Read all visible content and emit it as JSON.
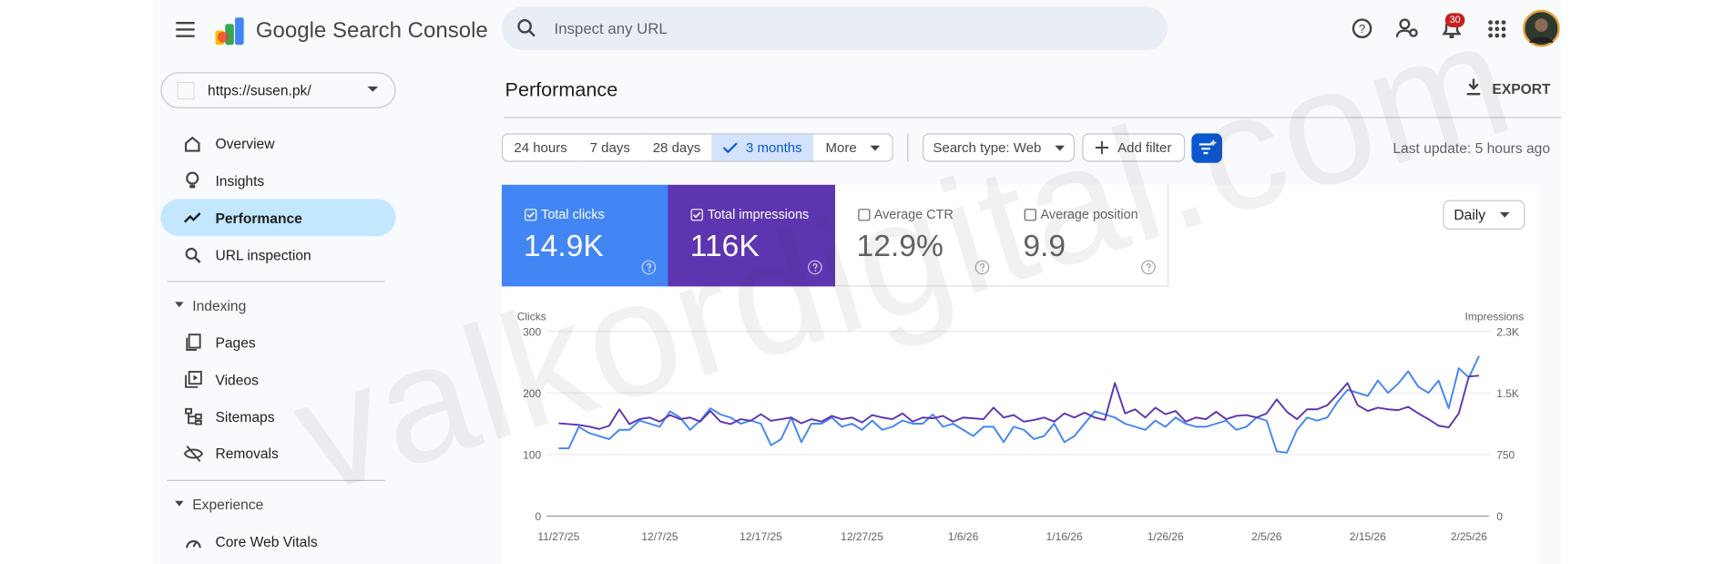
{
  "header": {
    "product": "Google Search Console",
    "search_placeholder": "Inspect any URL",
    "notifications": "30"
  },
  "sidebar": {
    "property": "https://susen.pk/",
    "nav": [
      "Overview",
      "Insights",
      "Performance",
      "URL inspection"
    ],
    "groups": [
      {
        "title": "Indexing",
        "items": [
          "Pages",
          "Videos",
          "Sitemaps",
          "Removals"
        ]
      },
      {
        "title": "Experience",
        "items": [
          "Core Web Vitals"
        ]
      }
    ]
  },
  "performance": {
    "title": "Performance",
    "export": "EXPORT",
    "ranges": [
      "24 hours",
      "7 days",
      "28 days",
      "3 months",
      "More"
    ],
    "search_type": "Search type: Web",
    "add_filter": "Add filter",
    "last_update": "Last update: 5 hours ago",
    "metrics": [
      {
        "label": "Total clicks",
        "value": "14.9K"
      },
      {
        "label": "Total impressions",
        "value": "116K"
      },
      {
        "label": "Average CTR",
        "value": "12.9%"
      },
      {
        "label": "Average position",
        "value": "9.9"
      }
    ],
    "granularity": "Daily"
  },
  "watermark": "valkordigital.com",
  "chart_data": {
    "type": "line",
    "x": [
      "11/27/25",
      null,
      null,
      null,
      null,
      null,
      null,
      null,
      null,
      null,
      "12/7/25",
      null,
      null,
      null,
      null,
      null,
      null,
      null,
      null,
      null,
      "12/17/25",
      null,
      null,
      null,
      null,
      null,
      null,
      null,
      null,
      null,
      "12/27/25",
      null,
      null,
      null,
      null,
      null,
      null,
      null,
      null,
      null,
      "1/6/26",
      null,
      null,
      null,
      null,
      null,
      null,
      null,
      null,
      null,
      "1/16/26",
      null,
      null,
      null,
      null,
      null,
      null,
      null,
      null,
      null,
      "1/26/26",
      null,
      null,
      null,
      null,
      null,
      null,
      null,
      null,
      null,
      "2/5/26",
      null,
      null,
      null,
      null,
      null,
      null,
      null,
      null,
      null,
      "2/15/26",
      null,
      null,
      null,
      null,
      null,
      null,
      null,
      null,
      null,
      "2/25/26",
      null
    ],
    "series": [
      {
        "name": "Clicks",
        "color": "#4285f4",
        "values": [
          110,
          110,
          145,
          135,
          130,
          125,
          140,
          140,
          155,
          150,
          145,
          170,
          160,
          140,
          155,
          175,
          165,
          160,
          150,
          155,
          150,
          115,
          125,
          160,
          120,
          150,
          150,
          160,
          145,
          150,
          140,
          155,
          140,
          145,
          155,
          150,
          150,
          165,
          145,
          150,
          140,
          130,
          145,
          145,
          120,
          145,
          140,
          125,
          130,
          150,
          120,
          130,
          150,
          170,
          165,
          160,
          150,
          145,
          140,
          155,
          145,
          160,
          150,
          145,
          145,
          150,
          155,
          140,
          145,
          160,
          155,
          105,
          103,
          140,
          160,
          155,
          160,
          185,
          205,
          200,
          195,
          220,
          200,
          215,
          235,
          210,
          200,
          220,
          175,
          240,
          225,
          260
        ]
      },
      {
        "name": "Impressions",
        "color": "#5e35b1",
        "axis": "y2",
        "values": [
          1130,
          1120,
          1110,
          1090,
          1060,
          1100,
          1300,
          1120,
          1180,
          1200,
          1150,
          1230,
          1180,
          1200,
          1150,
          1280,
          1150,
          1120,
          1180,
          1160,
          1240,
          1160,
          1180,
          1200,
          1130,
          1180,
          1150,
          1220,
          1180,
          1200,
          1140,
          1230,
          1200,
          1180,
          1250,
          1150,
          1200,
          1190,
          1220,
          1150,
          1200,
          1190,
          1180,
          1320,
          1200,
          1230,
          1150,
          1170,
          1200,
          1150,
          1250,
          1200,
          1260,
          1200,
          1170,
          1620,
          1250,
          1300,
          1200,
          1320,
          1240,
          1280,
          1150,
          1200,
          1180,
          1270,
          1180,
          1220,
          1230,
          1200,
          1250,
          1420,
          1270,
          1180,
          1300,
          1300,
          1350,
          1480,
          1620,
          1350,
          1280,
          1320,
          1300,
          1290,
          1330,
          1250,
          1180,
          1100,
          1080,
          1250,
          1700,
          1710
        ]
      }
    ],
    "ylim": [
      0,
      300
    ],
    "yticks": [
      0,
      100,
      200,
      300
    ],
    "y2lim": [
      0,
      2250
    ],
    "y2ticks": [
      0,
      750,
      {
        "value": 1500,
        "label": "1.5K"
      },
      {
        "value": 2250,
        "label": "2.3K"
      }
    ],
    "grid": true
  }
}
